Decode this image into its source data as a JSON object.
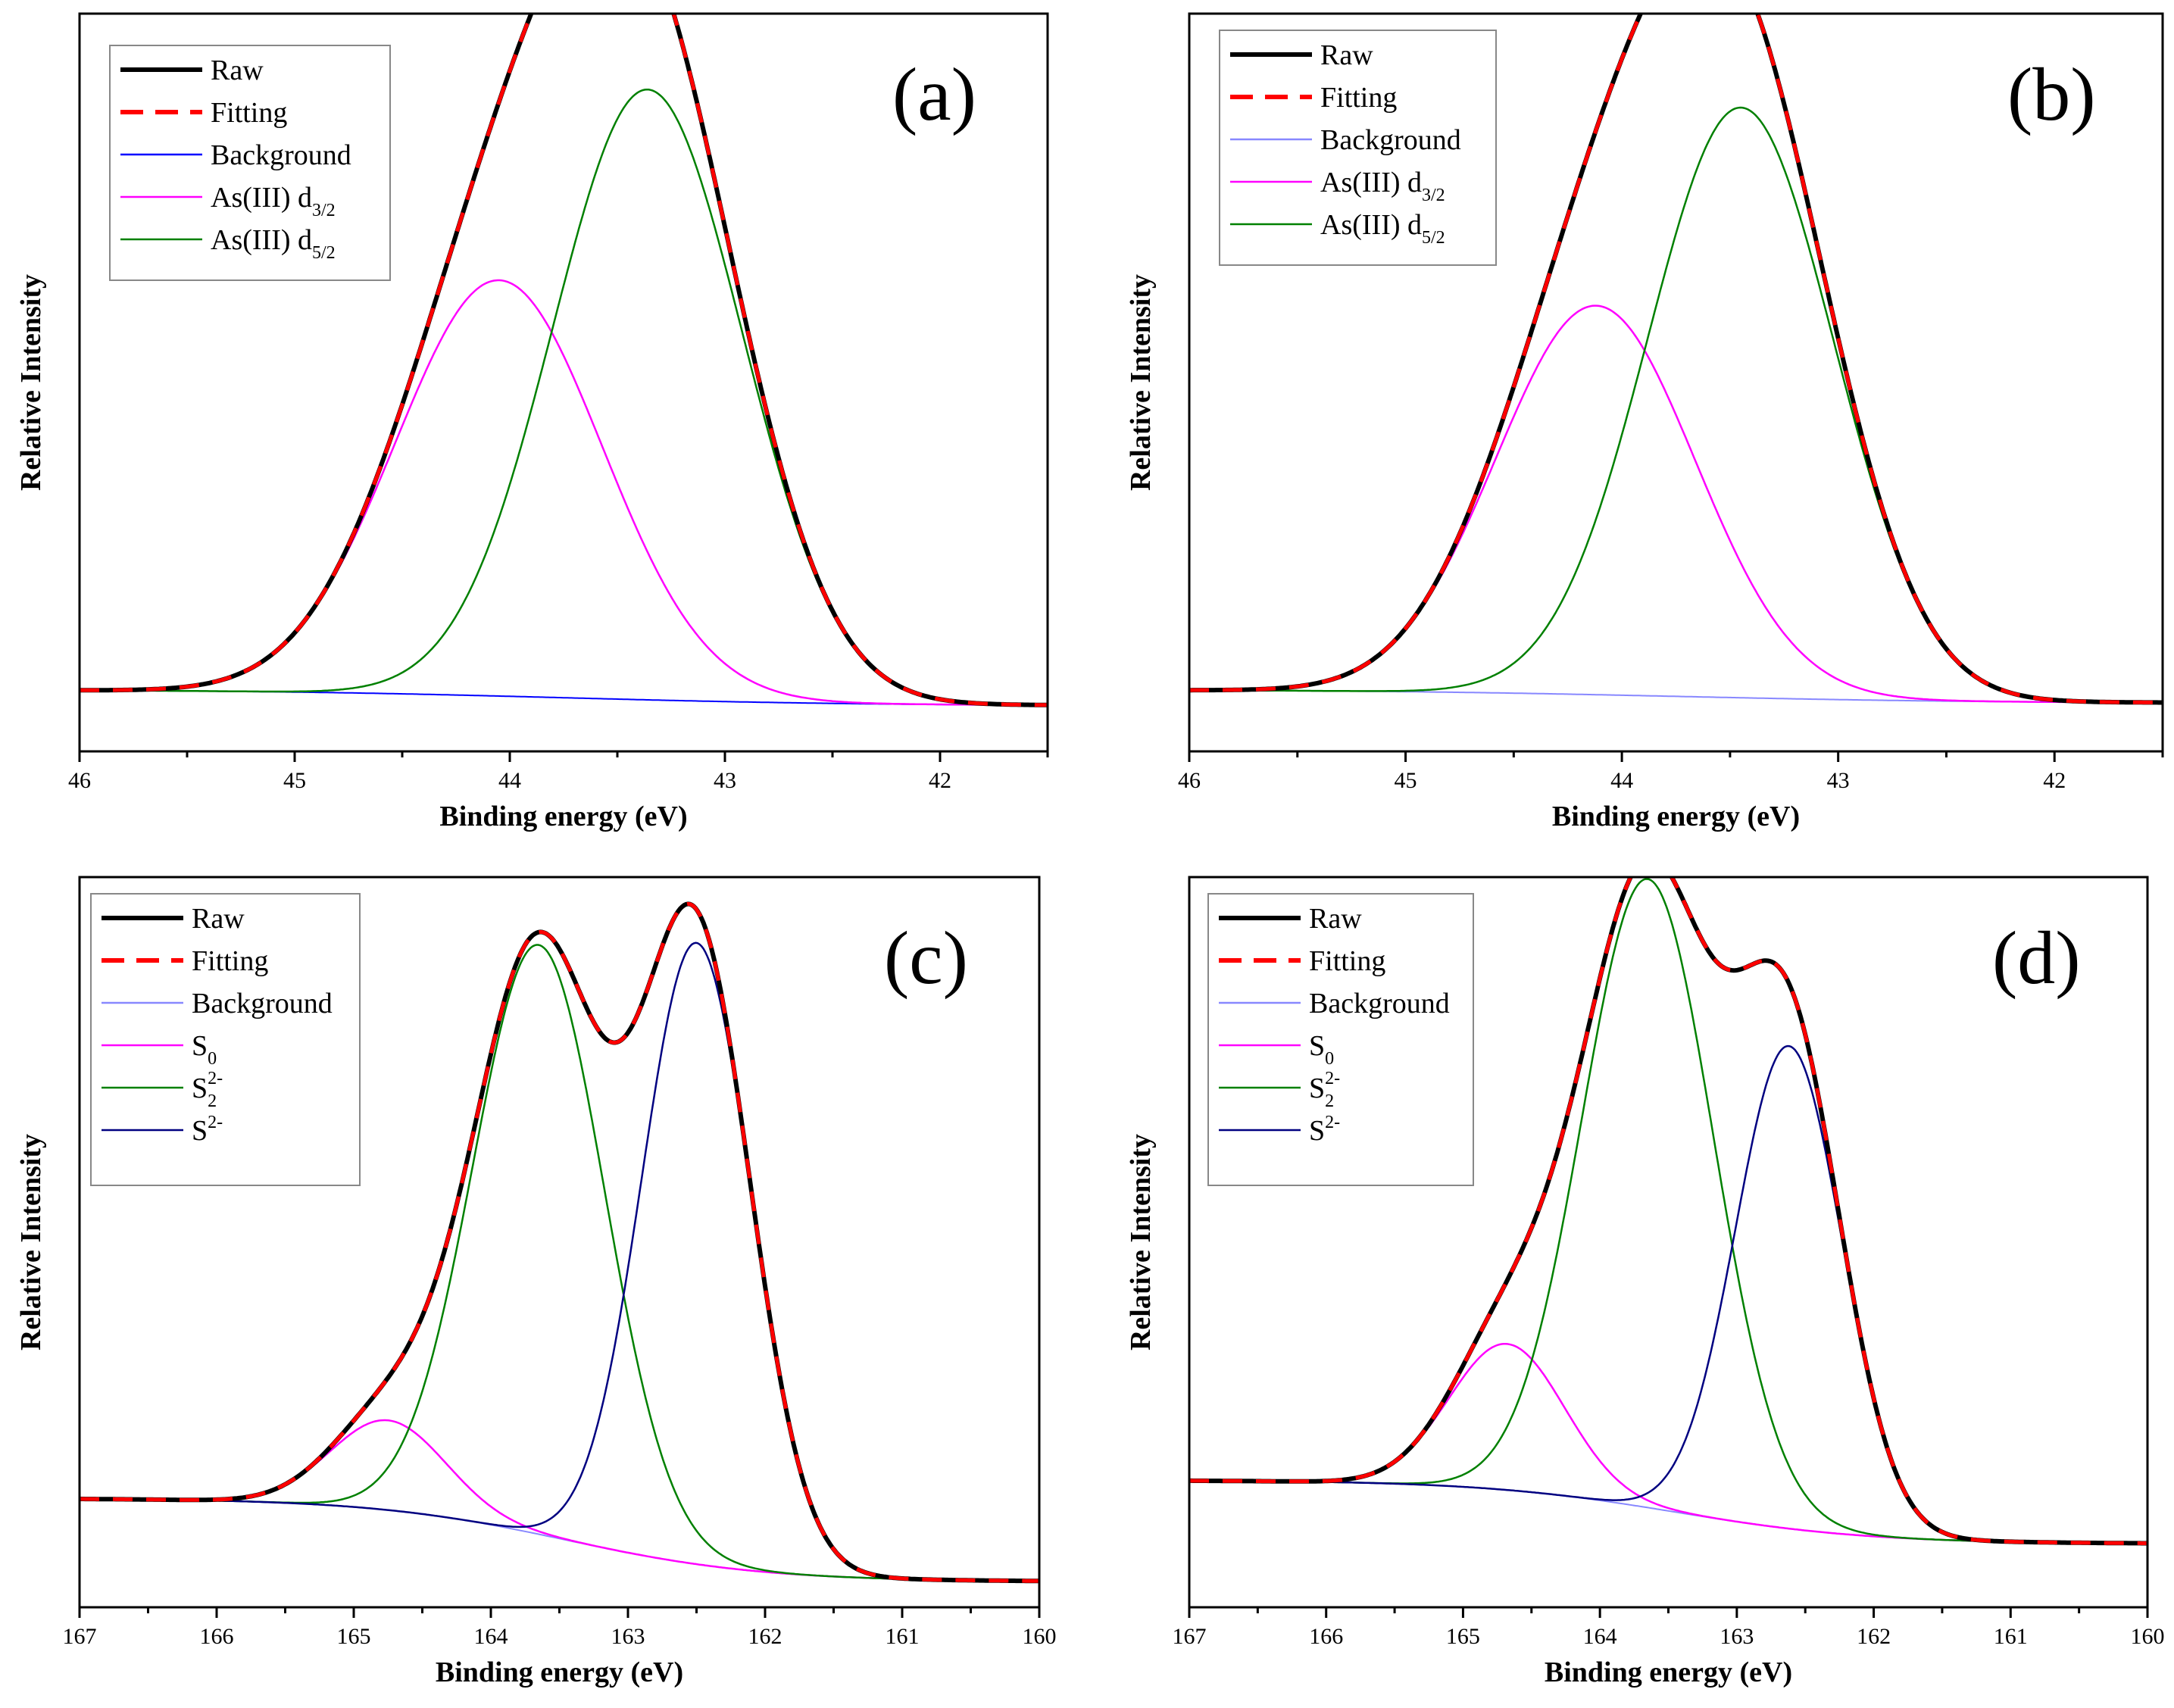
{
  "chart_data": [
    {
      "type": "line",
      "panel": "(a)",
      "xlabel": "Binding energy (eV)",
      "ylabel": "Relative Intensity",
      "xlim": [
        46,
        41.5
      ],
      "ylim": [
        -0.08,
        1.02
      ],
      "xticks": [
        46,
        45,
        44,
        43,
        42
      ],
      "legend": [
        {
          "key": "raw",
          "label": "Raw",
          "sub": "",
          "sup": "",
          "color": "#000000",
          "style": "solid-thick"
        },
        {
          "key": "fit",
          "label": "Fitting",
          "sub": "",
          "sup": "",
          "color": "#ff0000",
          "style": "dashed"
        },
        {
          "key": "bg",
          "label": "Background",
          "sub": "",
          "sup": "",
          "color": "#0000ff",
          "style": "solid"
        },
        {
          "key": "p1",
          "label": "As(III) d",
          "sub": "3/2",
          "sup": "",
          "color": "#ff00ff",
          "style": "solid"
        },
        {
          "key": "p2",
          "label": " As(III) d",
          "sub": "5/2",
          "sup": "",
          "color": "#008000",
          "style": "solid"
        }
      ],
      "background": {
        "high_x": 45.9,
        "high_y": 0.012,
        "low_x": 41.6,
        "low_y": -0.012
      },
      "peaks": [
        {
          "key": "p1",
          "center": 44.05,
          "height": 0.62,
          "sigma": 0.48
        },
        {
          "key": "p2",
          "center": 43.36,
          "height": 0.91,
          "sigma": 0.44
        }
      ]
    },
    {
      "type": "line",
      "panel": "(b)",
      "xlabel": "Binding energy (eV)",
      "ylabel": "Relative Intensity",
      "xlim": [
        46,
        41.5
      ],
      "ylim": [
        -0.08,
        1.02
      ],
      "xticks": [
        46,
        45,
        44,
        43,
        42
      ],
      "legend": [
        {
          "key": "raw",
          "label": "Raw",
          "sub": "",
          "sup": "",
          "color": "#000000",
          "style": "solid-thick"
        },
        {
          "key": "fit",
          "label": "Fitting",
          "sub": "",
          "sup": "",
          "color": "#ff0000",
          "style": "dashed"
        },
        {
          "key": "bg",
          "label": "Background",
          "sub": "",
          "sup": "",
          "color": "#8888ff",
          "style": "solid"
        },
        {
          "key": "p1",
          "label": "As(III) d",
          "sub": "3/2",
          "sup": "",
          "color": "#ff00ff",
          "style": "solid"
        },
        {
          "key": "p2",
          "label": " As(III) d",
          "sub": "5/2",
          "sup": "",
          "color": "#008000",
          "style": "solid"
        }
      ],
      "background": {
        "high_x": 45.9,
        "high_y": 0.012,
        "low_x": 41.6,
        "low_y": -0.008
      },
      "peaks": [
        {
          "key": "p1",
          "center": 44.12,
          "height": 0.58,
          "sigma": 0.46
        },
        {
          "key": "p2",
          "center": 43.45,
          "height": 0.88,
          "sigma": 0.43
        }
      ]
    },
    {
      "type": "line",
      "panel": "(c)",
      "xlabel": "Binding energy (eV)",
      "ylabel": "Relative Intensity",
      "xlim": [
        167,
        160
      ],
      "ylim": [
        -0.04,
        1.1
      ],
      "xticks": [
        167,
        166,
        165,
        164,
        163,
        162,
        161,
        160
      ],
      "legend": [
        {
          "key": "raw",
          "label": "Raw",
          "sub": "",
          "sup": "",
          "color": "#000000",
          "style": "solid-thick"
        },
        {
          "key": "fit",
          "label": "Fitting",
          "sub": "",
          "sup": "",
          "color": "#ff0000",
          "style": "dashed"
        },
        {
          "key": "bg",
          "label": "Background",
          "sub": "",
          "sup": "",
          "color": "#8888ff",
          "style": "solid"
        },
        {
          "key": "p1",
          "label": "S",
          "sub": "0",
          "sup": "",
          "color": "#ff00ff",
          "style": "solid"
        },
        {
          "key": "p2",
          "label": "S",
          "sub": "2",
          "sup": "2-",
          "color": "#008000",
          "style": "solid"
        },
        {
          "key": "p3",
          "label": "S",
          "sub": "",
          "sup": "2-",
          "color": "#000080",
          "style": "solid"
        }
      ],
      "background": {
        "high_x": 165.6,
        "high_y": 0.13,
        "low_x": 161.3,
        "low_y": 0.0
      },
      "peaks": [
        {
          "key": "p1",
          "center": 164.75,
          "height": 0.14,
          "sigma": 0.42
        },
        {
          "key": "p2",
          "center": 163.65,
          "height": 0.92,
          "sigma": 0.48
        },
        {
          "key": "p3",
          "center": 162.5,
          "height": 0.97,
          "sigma": 0.4
        }
      ]
    },
    {
      "type": "line",
      "panel": "(d)",
      "xlabel": "Binding energy (eV)",
      "ylabel": "Relative Intensity",
      "xlim": [
        167,
        160
      ],
      "ylim": [
        -0.1,
        1.05
      ],
      "xticks": [
        167,
        166,
        165,
        164,
        163,
        162,
        161,
        160
      ],
      "legend": [
        {
          "key": "raw",
          "label": "Raw",
          "sub": "",
          "sup": "",
          "color": "#000000",
          "style": "solid-thick"
        },
        {
          "key": "fit",
          "label": "Fitting",
          "sub": "",
          "sup": "",
          "color": "#ff0000",
          "style": "dashed"
        },
        {
          "key": "bg",
          "label": "Background",
          "sub": "",
          "sup": "",
          "color": "#8888ff",
          "style": "solid"
        },
        {
          "key": "p1",
          "label": "S",
          "sub": "0",
          "sup": "",
          "color": "#ff00ff",
          "style": "solid"
        },
        {
          "key": "p2",
          "label": "S",
          "sub": "2",
          "sup": "2-",
          "color": "#008000",
          "style": "solid"
        },
        {
          "key": "p3",
          "label": "S",
          "sub": "",
          "sup": "2-",
          "color": "#000080",
          "style": "solid"
        }
      ],
      "background": {
        "high_x": 165.6,
        "high_y": 0.1,
        "low_x": 161.3,
        "low_y": 0.0
      },
      "peaks": [
        {
          "key": "p1",
          "center": 164.68,
          "height": 0.23,
          "sigma": 0.42
        },
        {
          "key": "p2",
          "center": 163.65,
          "height": 0.99,
          "sigma": 0.48
        },
        {
          "key": "p3",
          "center": 162.62,
          "height": 0.76,
          "sigma": 0.39
        }
      ]
    }
  ]
}
